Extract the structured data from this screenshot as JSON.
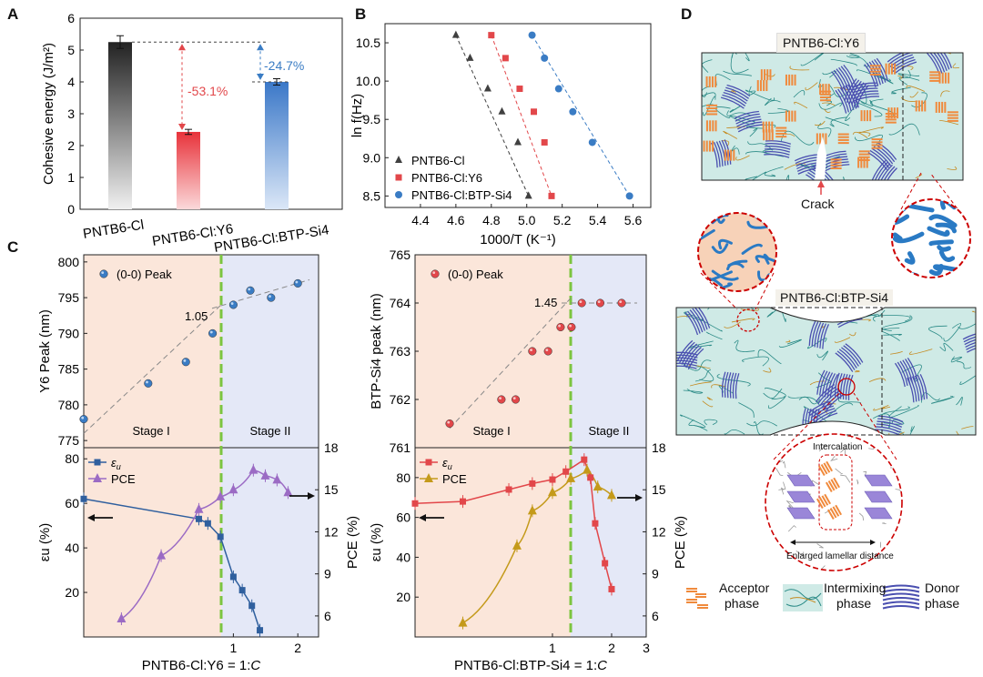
{
  "panels": {
    "A": "A",
    "B": "B",
    "C": "C",
    "D": "D"
  },
  "colors": {
    "gray": "#404040",
    "red": "#e2474a",
    "blue": "#3a7cc4",
    "purple": "#9b6bc4",
    "gold": "#c49a1a",
    "green": "#7cc540",
    "stage1_bg": "#fbe6da",
    "stage2_bg": "#e4e8f7",
    "mix": "#cfeae6",
    "donor": "#4a4fb0",
    "acceptor": "#f08a3c"
  },
  "chart_data": [
    {
      "id": "A",
      "type": "bar",
      "ylabel": "Cohesive energy (J/m²)",
      "ylim": [
        0,
        6
      ],
      "yticks": [
        0,
        1,
        2,
        3,
        4,
        5,
        6
      ],
      "categories": [
        "PNTB6-Cl",
        "PNTB6-Cl:Y6",
        "PNTB6-Cl:BTP-Si4"
      ],
      "values": [
        5.25,
        2.43,
        4.0
      ],
      "errors": [
        0.2,
        0.08,
        0.1
      ],
      "annotations": [
        "-53.1%",
        "-24.7%"
      ]
    },
    {
      "id": "B",
      "type": "scatter",
      "xlabel": "1000/T (K⁻¹)",
      "ylabel": "ln f(Hz)",
      "xlim": [
        4.2,
        5.7
      ],
      "ylim": [
        8.35,
        10.75
      ],
      "xticks": [
        4.4,
        4.6,
        4.8,
        5.0,
        5.2,
        5.4,
        5.6
      ],
      "yticks": [
        8.5,
        9.0,
        9.5,
        10.0,
        10.5
      ],
      "series": [
        {
          "name": "PNTB6-Cl",
          "marker": "triangle",
          "color": "#404040",
          "x": [
            4.6,
            4.68,
            4.78,
            4.86,
            4.95,
            5.01
          ],
          "y": [
            10.6,
            10.3,
            9.9,
            9.6,
            9.2,
            8.5
          ]
        },
        {
          "name": "PNTB6-Cl:Y6",
          "marker": "square",
          "color": "#e2474a",
          "x": [
            4.8,
            4.88,
            4.96,
            5.04,
            5.1,
            5.14
          ],
          "y": [
            10.6,
            10.3,
            9.9,
            9.6,
            9.2,
            8.5
          ]
        },
        {
          "name": "PNTB6-Cl:BTP-Si4",
          "marker": "circle",
          "color": "#3a7cc4",
          "x": [
            5.03,
            5.1,
            5.18,
            5.26,
            5.37,
            5.58
          ],
          "y": [
            10.6,
            10.3,
            9.9,
            9.6,
            9.2,
            8.5
          ]
        }
      ]
    },
    {
      "id": "C-left-top",
      "type": "scatter",
      "ylabel": "Y6 Peak (nm)",
      "ylim": [
        774,
        801
      ],
      "yticks": [
        775,
        780,
        785,
        790,
        795,
        800
      ],
      "series": [
        {
          "name": "(0-0) Peak",
          "x": [
            0.2,
            0.4,
            0.6,
            0.8,
            1.0,
            1.2,
            1.5,
            2.0
          ],
          "y": [
            778,
            783,
            786,
            790,
            794,
            796,
            795,
            797
          ]
        }
      ],
      "stages": [
        "Stage I",
        "Stage II"
      ],
      "annotation": "1.05"
    },
    {
      "id": "C-left-bottom",
      "type": "line",
      "xlabel_prefix": "PNTB6-Cl:Y6 = 1:",
      "xlabel_var": "C",
      "ylabel_left": "εu (%)",
      "ylabel_right": "PCE (%)",
      "xticks": [
        1,
        2
      ],
      "ylim_left": [
        0,
        85
      ],
      "yticks_left": [
        20,
        40,
        60,
        80
      ],
      "ylim_right": [
        4.5,
        18
      ],
      "yticks_right": [
        6,
        9,
        12,
        15,
        18
      ],
      "series": [
        {
          "name": "εu",
          "x": [
            0.2,
            0.69,
            0.76,
            0.87,
            1.0,
            1.1,
            1.22,
            1.33
          ],
          "y": [
            62,
            53,
            51,
            45,
            27,
            21,
            14,
            3
          ]
        },
        {
          "name": "PCE",
          "x": [
            0.3,
            0.46,
            0.69,
            0.87,
            1.0,
            1.24,
            1.41,
            1.6,
            1.8
          ],
          "y": [
            5.8,
            10.3,
            13.6,
            14.5,
            15.0,
            16.4,
            16.0,
            15.7,
            14.8
          ]
        }
      ]
    },
    {
      "id": "C-right-top",
      "type": "scatter",
      "ylabel": "BTP-Si4 peak (nm)",
      "ylim": [
        761,
        765
      ],
      "yticks": [
        761,
        762,
        763,
        764,
        765
      ],
      "series": [
        {
          "name": "(0-0) Peak",
          "x": [
            0.3,
            0.55,
            0.65,
            0.79,
            0.95,
            1.1,
            1.25,
            1.41,
            1.75,
            2.25
          ],
          "y": [
            761.5,
            762,
            762,
            763,
            763,
            763.5,
            763.5,
            764,
            764,
            764
          ]
        }
      ],
      "stages": [
        "Stage I",
        "Stage II"
      ],
      "annotation": "1.45"
    },
    {
      "id": "C-right-bottom",
      "type": "line",
      "xlabel_prefix": "PNTB6-Cl:BTP-Si4 = 1:",
      "xlabel_var": "C",
      "ylabel_left": "εu (%)",
      "ylabel_right": "PCE (%)",
      "xticks": [
        1,
        2,
        3
      ],
      "ylim_left": [
        0,
        95
      ],
      "yticks_left": [
        20,
        40,
        60,
        80
      ],
      "ylim_right": [
        4.5,
        18
      ],
      "yticks_right": [
        6,
        9,
        12,
        15,
        18
      ],
      "series": [
        {
          "name": "εu",
          "x": [
            0.2,
            0.35,
            0.6,
            0.79,
            1.0,
            1.17,
            1.45,
            1.56,
            1.65,
            1.85,
            2.0
          ],
          "y": [
            67,
            68,
            74,
            77,
            79,
            83,
            89,
            80,
            57,
            37,
            24
          ]
        },
        {
          "name": "PCE",
          "x": [
            0.35,
            0.66,
            0.79,
            1.0,
            1.24,
            1.5,
            1.7,
            2.0
          ],
          "y": [
            5.5,
            11.0,
            13.5,
            14.8,
            15.8,
            16.4,
            15.2,
            14.6
          ]
        }
      ]
    }
  ],
  "diagram": {
    "top_title": "PNTB6-Cl:Y6",
    "crack": "Crack",
    "mid_title": "PNTB6-Cl:BTP-Si4",
    "intercalation": "Intercalation",
    "enlarged": "Enlarged lamellar distance",
    "legend": [
      {
        "name": "acceptor",
        "line1": "Acceptor",
        "line2": "phase"
      },
      {
        "name": "intermixing",
        "line1": "Intermixing",
        "line2": "phase"
      },
      {
        "name": "donor",
        "line1": "Donor",
        "line2": "phase"
      }
    ]
  }
}
